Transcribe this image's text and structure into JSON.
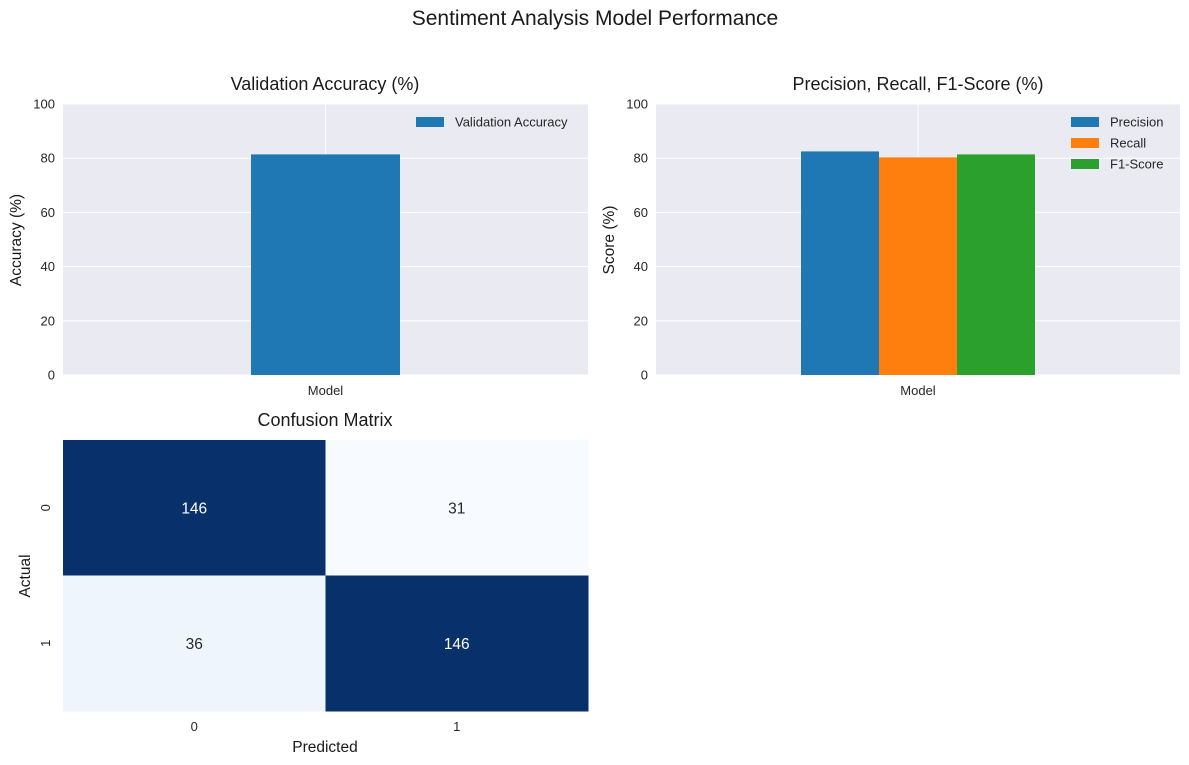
{
  "figure": {
    "title": "Sentiment Analysis Model Performance"
  },
  "colors": {
    "plot_bg": "#eaeaf2",
    "grid": "#ffffff",
    "blue": "#1f77b4",
    "orange": "#ff7f0e",
    "green": "#2ca02c",
    "cm_dark": "#08306b",
    "cm_light_a": "#f7fbff",
    "cm_light_b": "#eef5fc"
  },
  "chart_data": [
    {
      "type": "bar",
      "title": "Validation Accuracy (%)",
      "xlabel": "",
      "ylabel": "Accuracy (%)",
      "categories": [
        "Model"
      ],
      "series": [
        {
          "name": "Validation Accuracy",
          "values": [
            81.4
          ]
        }
      ],
      "ylim": [
        0,
        100
      ],
      "yticks": [
        0,
        20,
        40,
        60,
        80,
        100
      ],
      "grid": true,
      "legend": "top-right"
    },
    {
      "type": "bar",
      "title": "Precision, Recall, F1-Score (%)",
      "xlabel": "",
      "ylabel": "Score (%)",
      "categories": [
        "Model"
      ],
      "series": [
        {
          "name": "Precision",
          "values": [
            82.5
          ]
        },
        {
          "name": "Recall",
          "values": [
            80.3
          ]
        },
        {
          "name": "F1-Score",
          "values": [
            81.4
          ]
        }
      ],
      "ylim": [
        0,
        100
      ],
      "yticks": [
        0,
        20,
        40,
        60,
        80,
        100
      ],
      "grid": true,
      "legend": "top-right"
    },
    {
      "type": "heatmap",
      "title": "Confusion Matrix",
      "xlabel": "Predicted",
      "ylabel": "Actual",
      "x_labels": [
        "0",
        "1"
      ],
      "y_labels": [
        "0",
        "1"
      ],
      "values": [
        [
          146,
          31
        ],
        [
          36,
          146
        ]
      ],
      "colormap": "Blues",
      "colorbar": false
    }
  ]
}
